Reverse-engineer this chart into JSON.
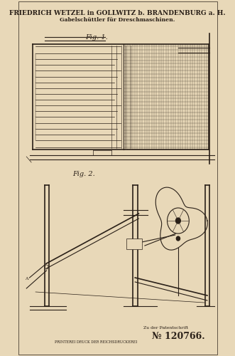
{
  "bg_color": "#e8d8b8",
  "paper_color": "#dfc9a0",
  "line_color": "#2a2018",
  "title_line1": "FRIEDRICH WETZEL in GOLLWITZ b. BRANDENBURG a. H.",
  "title_line2": "Gabelschüttler für Dreschmaschinen.",
  "fig1_label": "Fig. 1.",
  "fig2_label": "Fig. 2.",
  "patent_label": "Zu der Patentschrift",
  "patent_number": "№ 120766.",
  "printer_text": "PRINTEREI DRUCK DER REICHSDRUCKEREI",
  "fig_width": 331,
  "fig_height": 500
}
